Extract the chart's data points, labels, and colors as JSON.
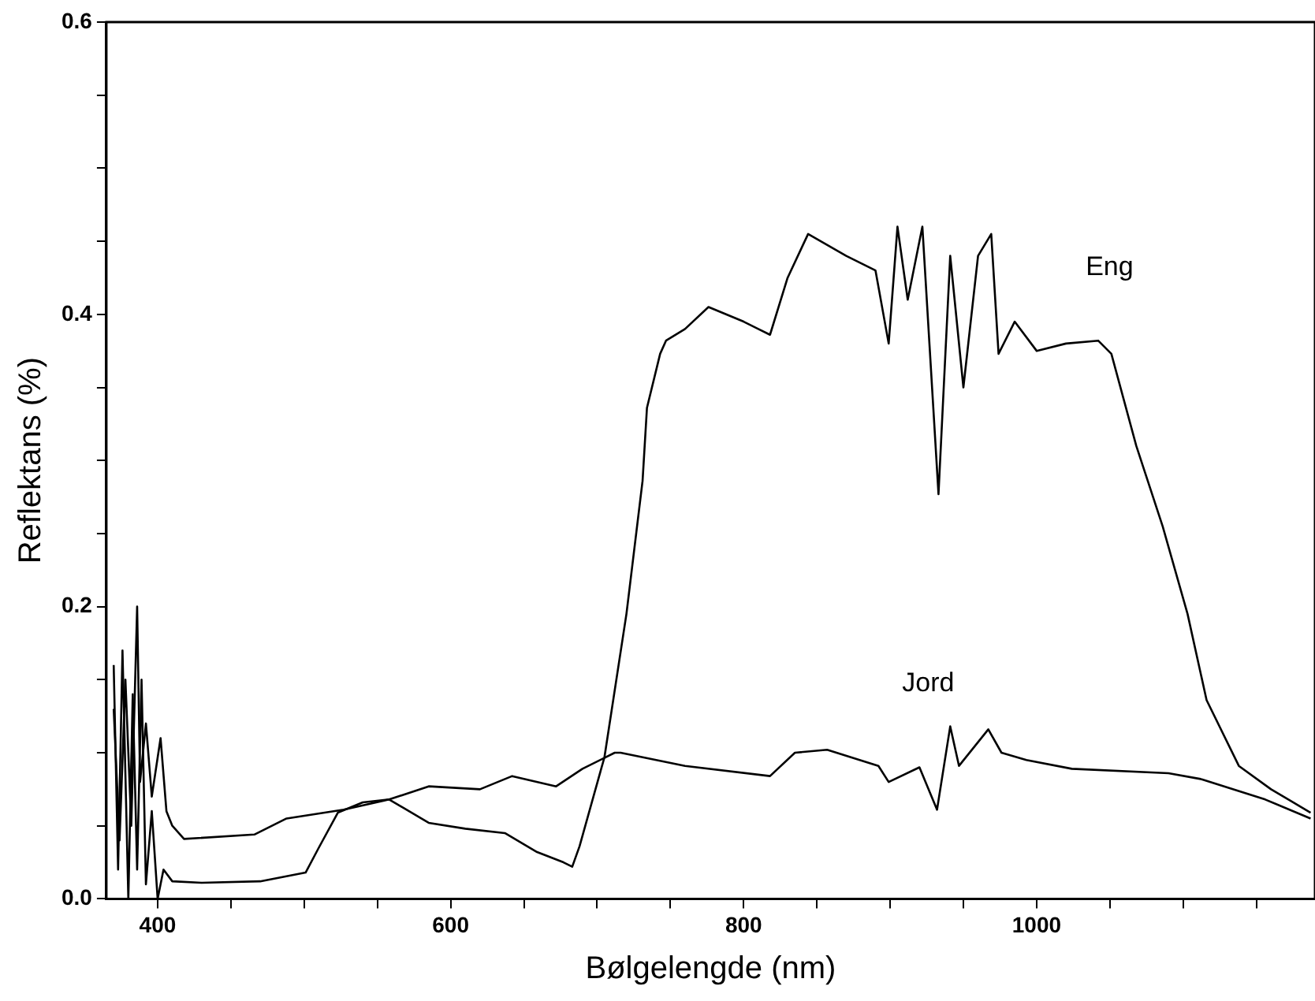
{
  "chart_data": {
    "type": "line",
    "xlabel": "Bølgelengde (nm)",
    "ylabel": "Reflektans (%)",
    "xlim": [
      365,
      1190
    ],
    "ylim": [
      0,
      0.6
    ],
    "xticks": [
      400,
      {
        "value": 450,
        "label": null
      },
      {
        "value": 500,
        "label": null
      },
      {
        "value": 550,
        "label": null
      },
      600,
      {
        "value": 650,
        "label": null
      },
      {
        "value": 700,
        "label": null
      },
      {
        "value": 750,
        "label": null
      },
      800,
      {
        "value": 850,
        "label": null
      },
      {
        "value": 900,
        "label": null
      },
      {
        "value": 950,
        "label": null
      },
      1000,
      {
        "value": 1050,
        "label": null
      },
      {
        "value": 1100,
        "label": null
      },
      {
        "value": 1150,
        "label": null
      }
    ],
    "yticks": [
      {
        "value": 0,
        "label": "0.0"
      },
      {
        "value": 0.05,
        "label": null
      },
      {
        "value": 0.1,
        "label": null
      },
      {
        "value": 0.15,
        "label": null
      },
      0.2,
      {
        "value": 0.25,
        "label": null
      },
      {
        "value": 0.3,
        "label": null
      },
      {
        "value": 0.35,
        "label": null
      },
      0.4,
      {
        "value": 0.45,
        "label": null
      },
      {
        "value": 0.5,
        "label": null
      },
      {
        "value": 0.55,
        "label": null
      },
      0.6
    ],
    "grid": false,
    "legend": false,
    "marker": "none",
    "line_style": "solid",
    "series": [
      {
        "name": "Eng",
        "color": "#000000",
        "x": [
          370,
          373,
          376,
          380,
          383,
          386,
          389,
          392,
          396,
          400,
          404,
          410,
          430,
          470,
          501,
          510,
          523,
          540,
          558,
          585,
          610,
          637,
          659,
          677,
          683,
          688,
          705,
          720,
          731,
          734,
          743,
          747,
          760,
          776,
          800,
          810,
          818,
          830,
          844,
          870,
          890,
          899,
          905,
          912,
          922,
          933,
          941,
          950,
          960,
          969,
          974,
          985,
          1000,
          1020,
          1042,
          1051,
          1068,
          1086,
          1103,
          1116,
          1138,
          1160,
          1187
        ],
        "values": [
          0.16,
          0.02,
          0.17,
          0.0,
          0.14,
          0.02,
          0.15,
          0.01,
          0.06,
          0.0,
          0.02,
          0.012,
          0.011,
          0.012,
          0.018,
          0.035,
          0.059,
          0.066,
          0.068,
          0.052,
          0.048,
          0.045,
          0.032,
          0.025,
          0.022,
          0.036,
          0.097,
          0.195,
          0.286,
          0.336,
          0.373,
          0.382,
          0.39,
          0.405,
          0.395,
          0.39,
          0.386,
          0.425,
          0.455,
          0.44,
          0.43,
          0.38,
          0.46,
          0.41,
          0.46,
          0.277,
          0.44,
          0.35,
          0.44,
          0.455,
          0.373,
          0.395,
          0.375,
          0.38,
          0.382,
          0.373,
          0.31,
          0.255,
          0.195,
          0.136,
          0.091,
          0.075,
          0.059
        ]
      },
      {
        "name": "Jord",
        "color": "#000000",
        "x": [
          370,
          374,
          378,
          382,
          386,
          388,
          392,
          396,
          402,
          406,
          410,
          418,
          466,
          488,
          527,
          558,
          585,
          620,
          642,
          672,
          690,
          712,
          716,
          760,
          818,
          835,
          857,
          892,
          899,
          920,
          932,
          941,
          947,
          967,
          976,
          993,
          1024,
          1090,
          1112,
          1156,
          1187
        ],
        "values": [
          0.13,
          0.04,
          0.15,
          0.05,
          0.2,
          0.08,
          0.12,
          0.07,
          0.11,
          0.06,
          0.05,
          0.041,
          0.044,
          0.055,
          0.061,
          0.068,
          0.077,
          0.075,
          0.084,
          0.077,
          0.089,
          0.1,
          0.1,
          0.091,
          0.084,
          0.1,
          0.102,
          0.091,
          0.08,
          0.09,
          0.061,
          0.118,
          0.091,
          0.116,
          0.1,
          0.095,
          0.089,
          0.086,
          0.082,
          0.068,
          0.055
        ]
      }
    ]
  }
}
